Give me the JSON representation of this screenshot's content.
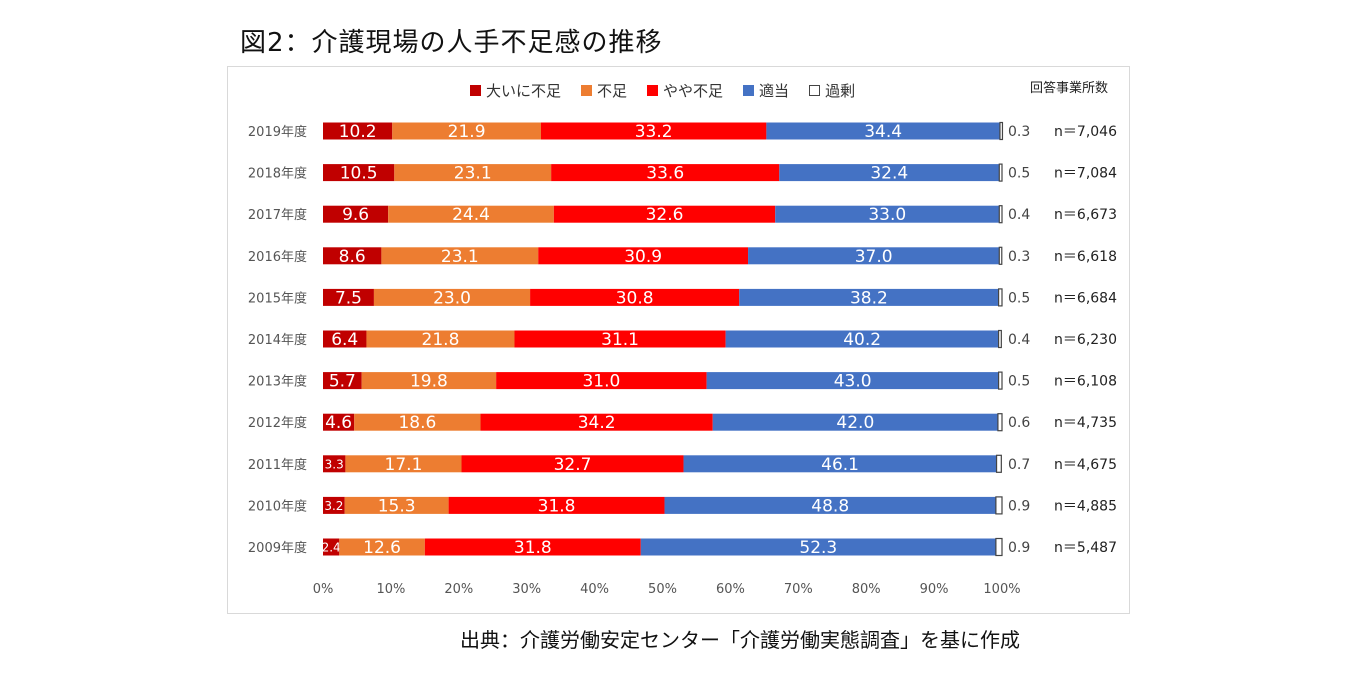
{
  "figure": {
    "title": "図2：介護現場の人手不足感の推移",
    "source": "出典：介護労働安定センター「介護労働実態調査」を基に作成",
    "n_header": "回答事業所数"
  },
  "chart_data": {
    "type": "bar",
    "orientation": "horizontal",
    "stacked": "percent",
    "title": "",
    "xlabel": "",
    "ylabel": "",
    "xlim": [
      0,
      100
    ],
    "x_ticks": [
      "0%",
      "10%",
      "20%",
      "30%",
      "40%",
      "50%",
      "60%",
      "70%",
      "80%",
      "90%",
      "100%"
    ],
    "categories": [
      "2019年度",
      "2018年度",
      "2017年度",
      "2016年度",
      "2015年度",
      "2014年度",
      "2013年度",
      "2012年度",
      "2011年度",
      "2010年度",
      "2009年度"
    ],
    "series": [
      {
        "name": "大いに不足",
        "color": "#c00000",
        "values": [
          10.2,
          10.5,
          9.6,
          8.6,
          7.5,
          6.4,
          5.7,
          4.6,
          3.3,
          3.2,
          2.4
        ]
      },
      {
        "name": "不足",
        "color": "#ed7d31",
        "values": [
          21.9,
          23.1,
          24.4,
          23.1,
          23.0,
          21.8,
          19.8,
          18.6,
          17.1,
          15.3,
          12.6
        ]
      },
      {
        "name": "やや不足",
        "color": "#ff0000",
        "values": [
          33.2,
          33.6,
          32.6,
          30.9,
          30.8,
          31.1,
          31.0,
          34.2,
          32.7,
          31.8,
          31.8
        ]
      },
      {
        "name": "適当",
        "color": "#4472c4",
        "values": [
          34.4,
          32.4,
          33.0,
          37.0,
          38.2,
          40.2,
          43.0,
          42.0,
          46.1,
          48.8,
          52.3
        ]
      },
      {
        "name": "過剰",
        "color": "#ffffff",
        "values": [
          0.3,
          0.5,
          0.4,
          0.3,
          0.5,
          0.4,
          0.5,
          0.6,
          0.7,
          0.9,
          0.9
        ]
      }
    ],
    "value_labels": [
      [
        "10.2",
        "21.9",
        "33.2",
        "34.4",
        "0.3"
      ],
      [
        "10.5",
        "23.1",
        "33.6",
        "32.4",
        "0.5"
      ],
      [
        "9.6",
        "24.4",
        "32.6",
        "33.0",
        "0.4"
      ],
      [
        "8.6",
        "23.1",
        "30.9",
        "37.0",
        "0.3"
      ],
      [
        "7.5",
        "23.0",
        "30.8",
        "38.2",
        "0.5"
      ],
      [
        "6.4",
        "21.8",
        "31.1",
        "40.2",
        "0.4"
      ],
      [
        "5.7",
        "19.8",
        "31.0",
        "43.0",
        "0.5"
      ],
      [
        "4.6",
        "18.6",
        "34.2",
        "42.0",
        "0.6"
      ],
      [
        "3.3",
        "17.1",
        "32.7",
        "46.1",
        "0.7"
      ],
      [
        "3.2",
        "15.3",
        "31.8",
        "48.8",
        "0.9"
      ],
      [
        "2.4",
        "12.6",
        "31.8",
        "52.3",
        "0.9"
      ]
    ],
    "n_labels": [
      "n＝7,046",
      "n＝7,084",
      "n＝6,673",
      "n＝6,618",
      "n＝6,684",
      "n＝6,230",
      "n＝6,108",
      "n＝4,735",
      "n＝4,675",
      "n＝4,885",
      "n＝5,487"
    ],
    "legend_position": "top",
    "grid": false,
    "text_color_on_bars": "#ffffff",
    "outline_color": "#444444"
  }
}
